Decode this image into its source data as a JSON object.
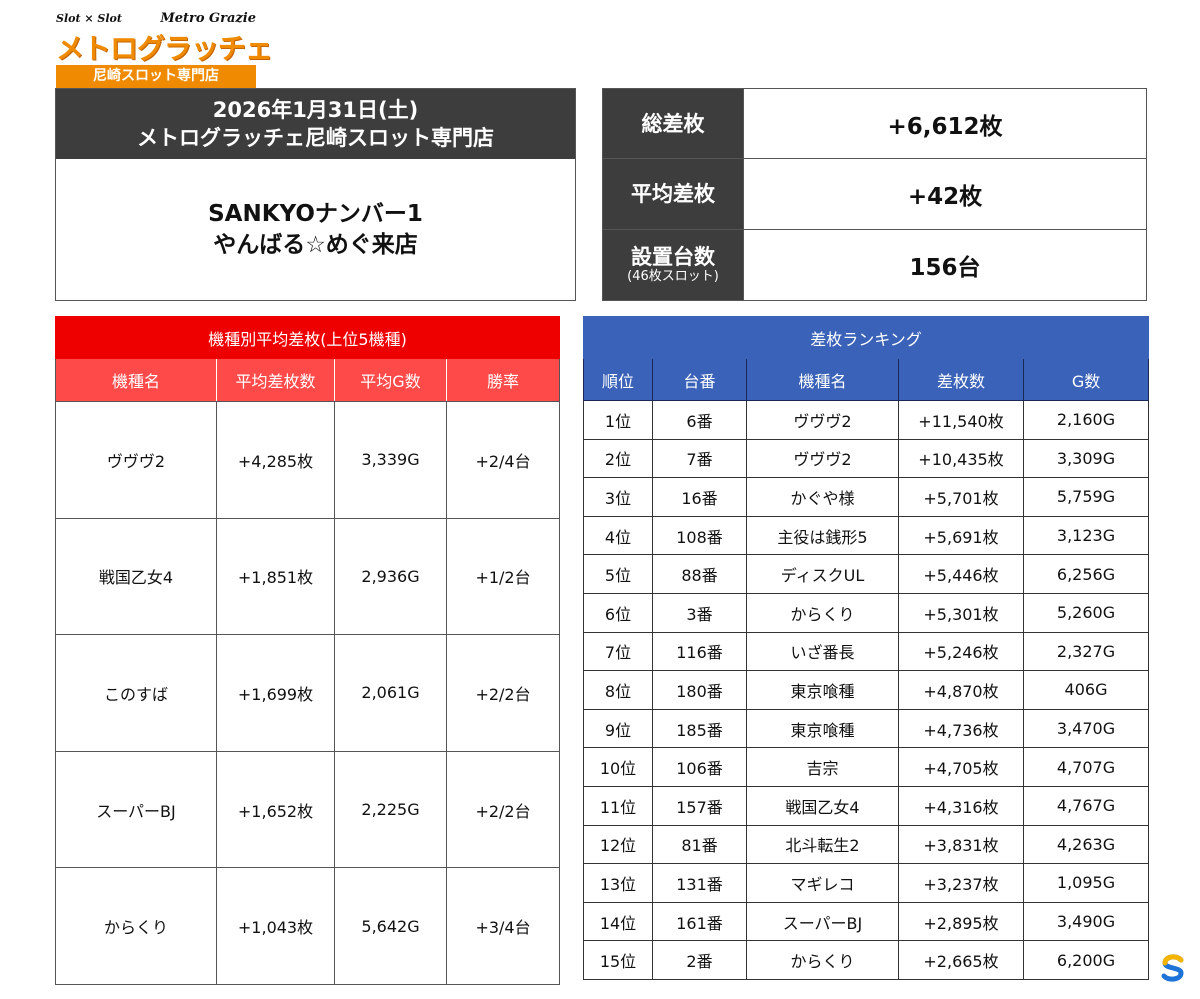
{
  "logo": {
    "left_small": "Slot × Slot",
    "brand": "Metro Grazie",
    "main": "メトログラッチェ",
    "sub": "尼崎スロット専門店"
  },
  "title": {
    "line1": "2026年1月31日(土)",
    "line2": "メトログラッチェ尼崎スロット専門店",
    "event1": "SANKYOナンバー1",
    "event2": "やんばる☆めぐ来店"
  },
  "summary": [
    {
      "label": "総差枚",
      "sub": "",
      "value": "+6,612枚"
    },
    {
      "label": "平均差枚",
      "sub": "",
      "value": "+42枚"
    },
    {
      "label": "設置台数",
      "sub": "(46枚スロット)",
      "value": "156台"
    }
  ],
  "model_table": {
    "caption": "機種別平均差枚(上位5機種)",
    "headers": [
      "機種名",
      "平均差枚数",
      "平均G数",
      "勝率"
    ],
    "rows": [
      [
        "ヴヴヴ2",
        "+4,285枚",
        "3,339G",
        "+2/4台"
      ],
      [
        "戦国乙女4",
        "+1,851枚",
        "2,936G",
        "+1/2台"
      ],
      [
        "このすば",
        "+1,699枚",
        "2,061G",
        "+2/2台"
      ],
      [
        "スーパーBJ",
        "+1,652枚",
        "2,225G",
        "+2/2台"
      ],
      [
        "からくり",
        "+1,043枚",
        "5,642G",
        "+3/4台"
      ]
    ]
  },
  "ranking_table": {
    "caption": "差枚ランキング",
    "headers": [
      "順位",
      "台番",
      "機種名",
      "差枚数",
      "G数"
    ],
    "rows": [
      [
        "1位",
        "6番",
        "ヴヴヴ2",
        "+11,540枚",
        "2,160G"
      ],
      [
        "2位",
        "7番",
        "ヴヴヴ2",
        "+10,435枚",
        "3,309G"
      ],
      [
        "3位",
        "16番",
        "かぐや様",
        "+5,701枚",
        "5,759G"
      ],
      [
        "4位",
        "108番",
        "主役は銭形5",
        "+5,691枚",
        "3,123G"
      ],
      [
        "5位",
        "88番",
        "ディスクUL",
        "+5,446枚",
        "6,256G"
      ],
      [
        "6位",
        "3番",
        "からくり",
        "+5,301枚",
        "5,260G"
      ],
      [
        "7位",
        "116番",
        "いざ番長",
        "+5,246枚",
        "2,327G"
      ],
      [
        "8位",
        "180番",
        "東京喰種",
        "+4,870枚",
        "406G"
      ],
      [
        "9位",
        "185番",
        "東京喰種",
        "+4,736枚",
        "3,470G"
      ],
      [
        "10位",
        "106番",
        "吉宗",
        "+4,705枚",
        "4,707G"
      ],
      [
        "11位",
        "157番",
        "戦国乙女4",
        "+4,316枚",
        "4,767G"
      ],
      [
        "12位",
        "81番",
        "北斗転生2",
        "+3,831枚",
        "4,263G"
      ],
      [
        "13位",
        "131番",
        "マギレコ",
        "+3,237枚",
        "1,095G"
      ],
      [
        "14位",
        "161番",
        "スーパーBJ",
        "+2,895枚",
        "3,490G"
      ],
      [
        "15位",
        "2番",
        "からくり",
        "+2,665枚",
        "6,200G"
      ]
    ]
  },
  "colors": {
    "dark_header": "#3d3d3d",
    "red_caption": "#ee0000",
    "red_header": "#ff4a4a",
    "blue_header": "#3a62b8",
    "logo_orange": "#f08a00"
  },
  "icons": {
    "corner_badge": "s-logo-icon"
  }
}
